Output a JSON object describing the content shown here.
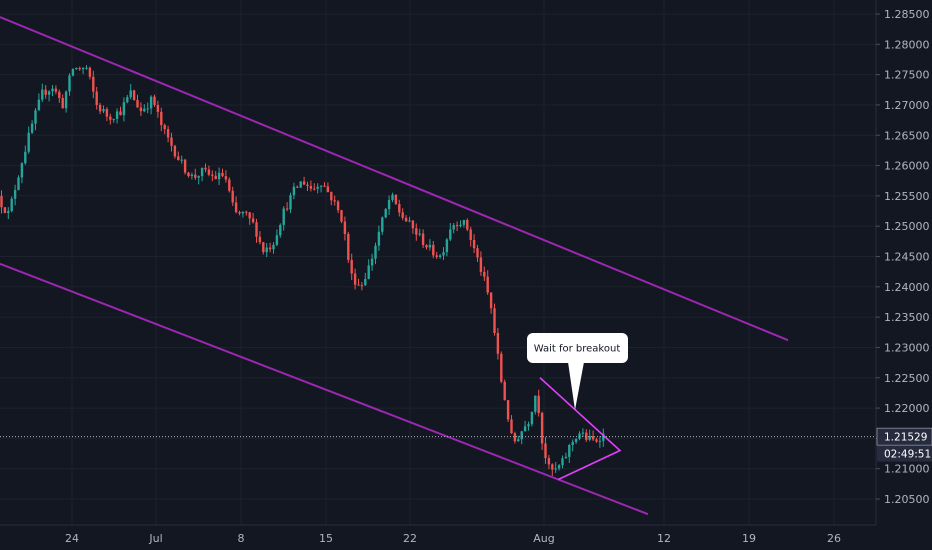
{
  "chart_data": {
    "type": "candlestick",
    "y_ticks": [
      "1.20500",
      "1.21000",
      "1.21500",
      "1.22000",
      "1.22500",
      "1.23000",
      "1.23500",
      "1.24000",
      "1.24500",
      "1.25000",
      "1.25500",
      "1.26000",
      "1.26500",
      "1.27000",
      "1.27500",
      "1.28000",
      "1.28500"
    ],
    "x_ticks": [
      "24",
      "Jul",
      "8",
      "15",
      "22",
      "Aug",
      "12",
      "19",
      "26"
    ],
    "ylim": [
      1.202,
      1.2895
    ],
    "current_price": "1.21529",
    "countdown": "02:49:51",
    "annotation": "Wait for breakout",
    "colors": {
      "up": "#26a69a",
      "down": "#ef5350",
      "channel": "#9c27b0",
      "triangle": "#e040fb",
      "background": "#131722"
    },
    "channel_upper": {
      "start": [
        0,
        1.2845
      ],
      "end": [
        788,
        1.2312
      ]
    },
    "channel_lower": {
      "start": [
        0,
        1.2438
      ],
      "end": [
        648,
        1.2025
      ]
    },
    "triangle": {
      "apex_x": 620,
      "apex_y": 1.213,
      "top_start": [
        540,
        1.225
      ],
      "bottom_start": [
        558,
        1.2082
      ]
    },
    "price_path": [
      [
        0,
        1.255
      ],
      [
        12,
        1.252
      ],
      [
        24,
        1.26
      ],
      [
        36,
        1.267
      ],
      [
        46,
        1.272
      ],
      [
        56,
        1.273
      ],
      [
        66,
        1.27
      ],
      [
        76,
        1.276
      ],
      [
        90,
        1.276
      ],
      [
        100,
        1.27
      ],
      [
        112,
        1.268
      ],
      [
        124,
        1.269
      ],
      [
        134,
        1.272
      ],
      [
        144,
        1.269
      ],
      [
        156,
        1.271
      ],
      [
        166,
        1.266
      ],
      [
        176,
        1.263
      ],
      [
        186,
        1.26
      ],
      [
        196,
        1.258
      ],
      [
        206,
        1.259
      ],
      [
        218,
        1.258
      ],
      [
        228,
        1.2585
      ],
      [
        238,
        1.252
      ],
      [
        248,
        1.252
      ],
      [
        258,
        1.25
      ],
      [
        266,
        1.246
      ],
      [
        276,
        1.247
      ],
      [
        286,
        1.252
      ],
      [
        298,
        1.256
      ],
      [
        306,
        1.2575
      ],
      [
        316,
        1.256
      ],
      [
        324,
        1.2575
      ],
      [
        334,
        1.255
      ],
      [
        346,
        1.251
      ],
      [
        354,
        1.242
      ],
      [
        364,
        1.24
      ],
      [
        374,
        1.244
      ],
      [
        384,
        1.25
      ],
      [
        394,
        1.255
      ],
      [
        404,
        1.252
      ],
      [
        414,
        1.25
      ],
      [
        424,
        1.248
      ],
      [
        434,
        1.246
      ],
      [
        444,
        1.245
      ],
      [
        454,
        1.25
      ],
      [
        462,
        1.251
      ],
      [
        470,
        1.25
      ],
      [
        478,
        1.246
      ],
      [
        486,
        1.242
      ],
      [
        494,
        1.237
      ],
      [
        500,
        1.23
      ],
      [
        504,
        1.225
      ],
      [
        510,
        1.22
      ],
      [
        516,
        1.214
      ],
      [
        524,
        1.216
      ],
      [
        532,
        1.218
      ],
      [
        540,
        1.223
      ],
      [
        546,
        1.214
      ],
      [
        552,
        1.21
      ],
      [
        558,
        1.2095
      ],
      [
        566,
        1.211
      ],
      [
        574,
        1.214
      ],
      [
        582,
        1.216
      ],
      [
        590,
        1.215
      ],
      [
        598,
        1.2145
      ],
      [
        604,
        1.2155
      ]
    ]
  }
}
